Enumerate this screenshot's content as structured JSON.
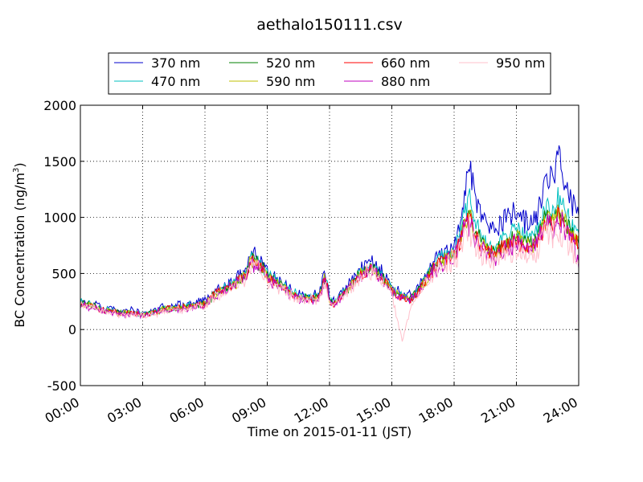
{
  "chart_data": {
    "type": "line",
    "title": "aethalo150111.csv",
    "xlabel": "Time on 2015-01-11 (JST)",
    "ylabel": "BC Concentration (ng/m",
    "ylabel_sup": "3",
    "ylabel_close": ")",
    "x_unit": "hours",
    "xlim": [
      0,
      24
    ],
    "ylim": [
      -500,
      2000
    ],
    "grid": true,
    "legend_position": "top",
    "x_ticks": [
      0,
      3,
      6,
      9,
      12,
      15,
      18,
      21,
      24
    ],
    "x_tick_labels": [
      "00:00",
      "03:00",
      "06:00",
      "09:00",
      "12:00",
      "15:00",
      "18:00",
      "21:00",
      "24:00"
    ],
    "y_ticks": [
      -500,
      0,
      500,
      1000,
      1500,
      2000
    ],
    "y_tick_labels": [
      "-500",
      "0",
      "500",
      "1000",
      "1500",
      "2000"
    ],
    "series": [
      {
        "name": "370 nm",
        "color": "#0000cc",
        "amp": 0.35,
        "x": [
          0,
          0.5,
          1,
          1.5,
          2,
          2.5,
          3,
          3.5,
          4,
          4.5,
          5,
          5.5,
          6,
          6.5,
          7,
          7.5,
          8,
          8.25,
          8.5,
          8.75,
          9,
          9.5,
          10,
          10.5,
          11,
          11.5,
          11.75,
          11.9,
          12,
          12.25,
          12.5,
          13,
          13.5,
          14,
          14.5,
          15,
          15.5,
          16,
          16.5,
          17,
          17.5,
          18,
          18.25,
          18.5,
          18.75,
          19,
          19.25,
          19.5,
          20,
          20.5,
          21,
          21.5,
          22,
          22.25,
          22.5,
          22.75,
          23,
          23.25,
          23.5,
          23.75,
          24
        ],
        "y": [
          250,
          230,
          200,
          180,
          160,
          170,
          150,
          160,
          200,
          210,
          220,
          230,
          250,
          350,
          400,
          450,
          550,
          700,
          650,
          600,
          520,
          450,
          380,
          320,
          300,
          330,
          500,
          420,
          280,
          250,
          320,
          420,
          550,
          600,
          520,
          380,
          320,
          300,
          450,
          600,
          700,
          750,
          900,
          1250,
          1500,
          1200,
          1050,
          950,
          900,
          1000,
          1050,
          950,
          1000,
          1250,
          1400,
          1300,
          1500,
          1400,
          1250,
          1100,
          1050
        ]
      },
      {
        "name": "470 nm",
        "color": "#00bfbf",
        "amp": 0.3,
        "x": [
          0,
          0.5,
          1,
          1.5,
          2,
          2.5,
          3,
          3.5,
          4,
          4.5,
          5,
          5.5,
          6,
          6.5,
          7,
          7.5,
          8,
          8.25,
          8.5,
          8.75,
          9,
          9.5,
          10,
          10.5,
          11,
          11.5,
          11.75,
          11.9,
          12,
          12.25,
          12.5,
          13,
          13.5,
          14,
          14.5,
          15,
          15.5,
          16,
          16.5,
          17,
          17.5,
          18,
          18.25,
          18.5,
          18.75,
          19,
          19.25,
          19.5,
          20,
          20.5,
          21,
          21.5,
          22,
          22.25,
          22.5,
          22.75,
          23,
          23.25,
          23.5,
          23.75,
          24
        ],
        "y": [
          240,
          220,
          190,
          170,
          150,
          160,
          140,
          150,
          190,
          200,
          210,
          220,
          240,
          330,
          380,
          430,
          520,
          660,
          620,
          570,
          490,
          430,
          360,
          300,
          285,
          310,
          470,
          400,
          265,
          235,
          300,
          400,
          520,
          570,
          490,
          360,
          300,
          285,
          430,
          570,
          660,
          700,
          820,
          1050,
          1150,
          950,
          880,
          800,
          760,
          850,
          900,
          820,
          870,
          1000,
          1100,
          1050,
          1150,
          1080,
          980,
          900,
          860
        ]
      },
      {
        "name": "520 nm",
        "color": "#007f00",
        "amp": 0.3,
        "x": [
          0,
          0.5,
          1,
          1.5,
          2,
          2.5,
          3,
          3.5,
          4,
          4.5,
          5,
          5.5,
          6,
          6.5,
          7,
          7.5,
          8,
          8.25,
          8.5,
          8.75,
          9,
          9.5,
          10,
          10.5,
          11,
          11.5,
          11.75,
          11.9,
          12,
          12.25,
          12.5,
          13,
          13.5,
          14,
          14.5,
          15,
          15.5,
          16,
          16.5,
          17,
          17.5,
          18,
          18.25,
          18.5,
          18.75,
          19,
          19.25,
          19.5,
          20,
          20.5,
          21,
          21.5,
          22,
          22.25,
          22.5,
          22.75,
          23,
          23.25,
          23.5,
          23.75,
          24
        ],
        "y": [
          235,
          215,
          185,
          165,
          148,
          155,
          138,
          148,
          185,
          195,
          205,
          215,
          232,
          320,
          370,
          420,
          505,
          640,
          600,
          555,
          475,
          420,
          350,
          295,
          280,
          300,
          455,
          390,
          260,
          230,
          292,
          390,
          505,
          555,
          478,
          352,
          295,
          280,
          420,
          555,
          640,
          680,
          780,
          980,
          1060,
          880,
          810,
          740,
          700,
          790,
          840,
          760,
          810,
          930,
          1020,
          970,
          1060,
          1000,
          910,
          840,
          800
        ]
      },
      {
        "name": "590 nm",
        "color": "#bfbf00",
        "amp": 0.32,
        "x": [
          0,
          0.5,
          1,
          1.5,
          2,
          2.5,
          3,
          3.5,
          4,
          4.5,
          5,
          5.5,
          6,
          6.5,
          7,
          7.5,
          8,
          8.25,
          8.5,
          8.75,
          9,
          9.5,
          10,
          10.5,
          11,
          11.5,
          11.75,
          11.9,
          12,
          12.25,
          12.5,
          13,
          13.5,
          14,
          14.5,
          15,
          15.5,
          16,
          16.5,
          17,
          17.5,
          18,
          18.25,
          18.5,
          18.75,
          19,
          19.25,
          19.5,
          20,
          20.5,
          21,
          21.5,
          22,
          22.25,
          22.5,
          22.75,
          23,
          23.25,
          23.5,
          23.75,
          24
        ],
        "y": [
          230,
          210,
          180,
          160,
          145,
          150,
          135,
          145,
          180,
          190,
          200,
          210,
          228,
          315,
          365,
          415,
          495,
          625,
          585,
          540,
          465,
          410,
          345,
          290,
          275,
          295,
          445,
          380,
          250,
          225,
          285,
          380,
          495,
          545,
          470,
          345,
          290,
          275,
          410,
          545,
          625,
          665,
          760,
          950,
          1020,
          850,
          785,
          715,
          680,
          765,
          815,
          740,
          785,
          900,
          990,
          940,
          1030,
          970,
          880,
          815,
          775
        ]
      },
      {
        "name": "660 nm",
        "color": "#ff0000",
        "amp": 0.32,
        "x": [
          0,
          0.5,
          1,
          1.5,
          2,
          2.5,
          3,
          3.5,
          4,
          4.5,
          5,
          5.5,
          6,
          6.5,
          7,
          7.5,
          8,
          8.25,
          8.5,
          8.75,
          9,
          9.5,
          10,
          10.5,
          11,
          11.5,
          11.75,
          11.9,
          12,
          12.25,
          12.5,
          13,
          13.5,
          14,
          14.5,
          15,
          15.5,
          16,
          16.5,
          17,
          17.5,
          18,
          18.25,
          18.5,
          18.75,
          19,
          19.25,
          19.5,
          20,
          20.5,
          21,
          21.5,
          22,
          22.25,
          22.5,
          22.75,
          23,
          23.25,
          23.5,
          23.75,
          24
        ],
        "y": [
          228,
          208,
          178,
          158,
          143,
          148,
          133,
          143,
          178,
          188,
          198,
          208,
          225,
          312,
          360,
          410,
          490,
          615,
          575,
          532,
          458,
          405,
          340,
          286,
          272,
          292,
          440,
          375,
          248,
          222,
          282,
          375,
          490,
          538,
          465,
          340,
          286,
          272,
          405,
          538,
          615,
          655,
          748,
          935,
          1000,
          835,
          770,
          702,
          668,
          752,
          800,
          728,
          772,
          885,
          975,
          925,
          1010,
          955,
          868,
          802,
          762
        ]
      },
      {
        "name": "880 nm",
        "color": "#bf00bf",
        "amp": 0.4,
        "x": [
          0,
          0.5,
          1,
          1.5,
          2,
          2.5,
          3,
          3.5,
          4,
          4.5,
          5,
          5.5,
          6,
          6.5,
          7,
          7.5,
          8,
          8.25,
          8.5,
          8.75,
          9,
          9.5,
          10,
          10.5,
          11,
          11.5,
          11.75,
          11.9,
          12,
          12.25,
          12.5,
          13,
          13.5,
          14,
          14.5,
          15,
          15.5,
          16,
          16.5,
          17,
          17.5,
          18,
          18.25,
          18.5,
          18.75,
          19,
          19.25,
          19.5,
          20,
          20.5,
          21,
          21.5,
          22,
          22.25,
          22.5,
          22.75,
          23,
          23.25,
          23.5,
          23.75,
          24
        ],
        "y": [
          220,
          200,
          170,
          150,
          135,
          140,
          125,
          135,
          170,
          180,
          190,
          200,
          215,
          300,
          350,
          400,
          480,
          600,
          560,
          520,
          450,
          395,
          330,
          280,
          265,
          285,
          430,
          365,
          240,
          215,
          275,
          365,
          480,
          525,
          455,
          330,
          280,
          265,
          395,
          525,
          600,
          640,
          730,
          910,
          970,
          810,
          745,
          680,
          645,
          730,
          775,
          705,
          750,
          860,
          945,
          895,
          980,
          925,
          840,
          775,
          600
        ]
      },
      {
        "name": "950 nm",
        "color": "#ffc0cb",
        "amp": 0.5,
        "x": [
          0,
          0.5,
          1,
          1.5,
          2,
          2.5,
          3,
          3.5,
          4,
          4.5,
          5,
          5.5,
          6,
          6.5,
          7,
          7.5,
          8,
          8.25,
          8.5,
          8.75,
          9,
          9.5,
          10,
          10.5,
          11,
          11.5,
          11.75,
          11.9,
          12,
          12.25,
          12.5,
          13,
          13.5,
          14,
          14.5,
          15,
          15.5,
          16,
          16.5,
          17,
          17.5,
          18,
          18.25,
          18.5,
          18.75,
          19,
          19.25,
          19.5,
          20,
          20.5,
          21,
          21.5,
          22,
          22.25,
          22.5,
          22.75,
          23,
          23.25,
          23.5,
          23.75,
          24
        ],
        "y": [
          215,
          195,
          165,
          145,
          130,
          135,
          120,
          130,
          165,
          175,
          185,
          195,
          210,
          295,
          345,
          395,
          470,
          590,
          550,
          510,
          440,
          385,
          320,
          270,
          255,
          280,
          420,
          350,
          230,
          205,
          265,
          350,
          470,
          515,
          445,
          300,
          -100,
          250,
          380,
          510,
          585,
          620,
          700,
          860,
          900,
          760,
          700,
          640,
          600,
          680,
          720,
          650,
          700,
          800,
          880,
          830,
          900,
          850,
          760,
          700,
          650
        ]
      }
    ]
  }
}
